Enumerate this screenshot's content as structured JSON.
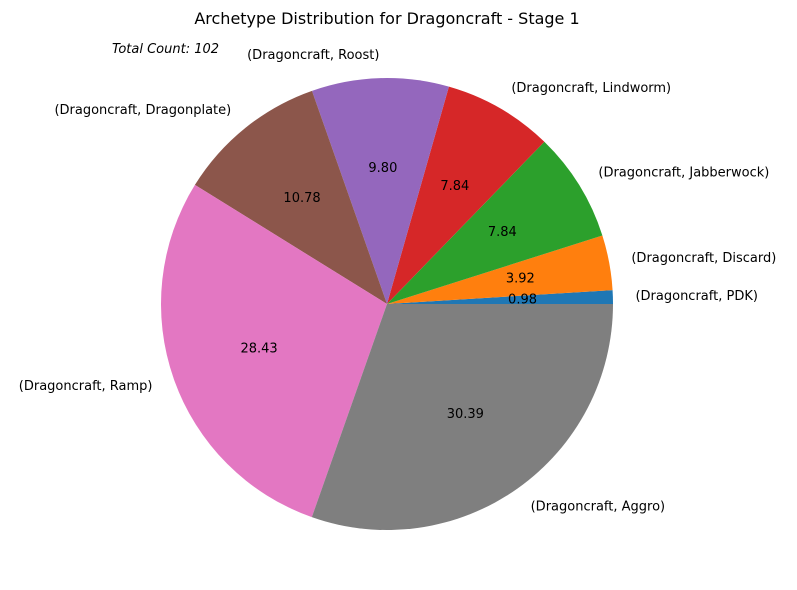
{
  "chart_data": {
    "type": "pie",
    "title": "Archetype Distribution for Dragoncraft - Stage 1",
    "annotation": "Total Count: 102",
    "slices": [
      {
        "label": "(Dragoncraft, PDK)",
        "value": 0.98,
        "color": "#1f77b4"
      },
      {
        "label": "(Dragoncraft, Discard)",
        "value": 3.92,
        "color": "#ff7f0e"
      },
      {
        "label": "(Dragoncraft, Jabberwock)",
        "value": 7.84,
        "color": "#2ca02c"
      },
      {
        "label": "(Dragoncraft, Lindworm)",
        "value": 7.84,
        "color": "#d62728"
      },
      {
        "label": "(Dragoncraft, Roost)",
        "value": 9.8,
        "color": "#9467bd"
      },
      {
        "label": "(Dragoncraft, Dragonplate)",
        "value": 10.78,
        "color": "#8c564b"
      },
      {
        "label": "(Dragoncraft, Ramp)",
        "value": 28.43,
        "color": "#e377c2"
      },
      {
        "label": "(Dragoncraft, Aggro)",
        "value": 30.39,
        "color": "#7f7f7f"
      }
    ]
  }
}
